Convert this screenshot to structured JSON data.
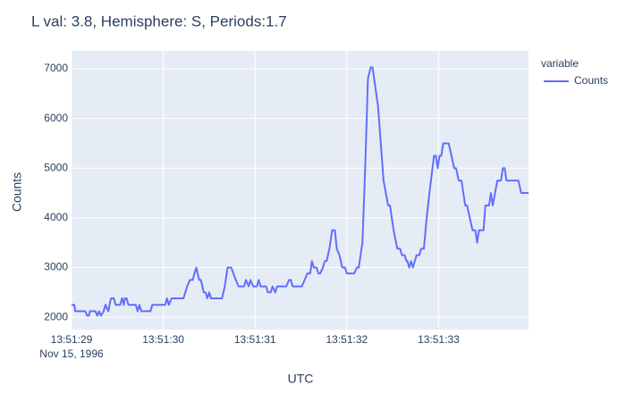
{
  "chart_data": {
    "type": "line",
    "title": "L val: 3.8, Hemisphere: S, Periods:1.7",
    "x_label": "UTC",
    "y_label": "Counts",
    "legend_title": "variable",
    "legend_position": "right",
    "x_date_label": "Nov 15, 1996",
    "x": [
      0,
      0.03,
      0.04,
      0.15,
      0.17,
      0.19,
      0.2,
      0.26,
      0.28,
      0.3,
      0.32,
      0.35,
      0.37,
      0.4,
      0.43,
      0.46,
      0.48,
      0.53,
      0.55,
      0.57,
      0.58,
      0.6,
      0.62,
      0.7,
      0.72,
      0.74,
      0.76,
      0.86,
      0.88,
      1.02,
      1.04,
      1.06,
      1.09,
      1.22,
      1.26,
      1.29,
      1.32,
      1.34,
      1.36,
      1.39,
      1.41,
      1.44,
      1.46,
      1.48,
      1.5,
      1.52,
      1.64,
      1.67,
      1.7,
      1.74,
      1.79,
      1.82,
      1.88,
      1.9,
      1.93,
      1.95,
      1.98,
      2.02,
      2.04,
      2.06,
      2.12,
      2.14,
      2.17,
      2.19,
      2.22,
      2.24,
      2.34,
      2.37,
      2.39,
      2.41,
      2.51,
      2.54,
      2.57,
      2.6,
      2.62,
      2.64,
      2.67,
      2.69,
      2.71,
      2.74,
      2.76,
      2.78,
      2.81,
      2.84,
      2.87,
      2.89,
      2.92,
      2.95,
      2.98,
      3.0,
      3.08,
      3.11,
      3.13,
      3.17,
      3.2,
      3.23,
      3.26,
      3.28,
      3.34,
      3.37,
      3.4,
      3.45,
      3.47,
      3.51,
      3.55,
      3.58,
      3.6,
      3.63,
      3.65,
      3.66,
      3.68,
      3.7,
      3.72,
      3.76,
      3.79,
      3.81,
      3.84,
      3.87,
      3.9,
      3.95,
      3.97,
      3.99,
      4.01,
      4.03,
      4.05,
      4.11,
      4.14,
      4.17,
      4.19,
      4.22,
      4.25,
      4.29,
      4.31,
      4.34,
      4.37,
      4.4,
      4.42,
      4.44,
      4.49,
      4.51,
      4.55,
      4.57,
      4.59,
      4.64,
      4.68,
      4.7,
      4.72,
      4.74,
      4.87,
      4.9,
      4.98
    ],
    "series": [
      {
        "name": "Counts",
        "color": "#636efa",
        "values": [
          2250,
          2250,
          2120,
          2120,
          2030,
          2030,
          2120,
          2120,
          2030,
          2120,
          2030,
          2120,
          2250,
          2120,
          2380,
          2380,
          2250,
          2250,
          2380,
          2250,
          2380,
          2380,
          2250,
          2250,
          2120,
          2250,
          2120,
          2120,
          2250,
          2250,
          2380,
          2250,
          2380,
          2380,
          2620,
          2750,
          2750,
          2880,
          3000,
          2750,
          2750,
          2500,
          2500,
          2380,
          2500,
          2380,
          2380,
          2620,
          3000,
          3000,
          2750,
          2620,
          2620,
          2750,
          2620,
          2750,
          2620,
          2620,
          2750,
          2620,
          2620,
          2500,
          2500,
          2620,
          2500,
          2620,
          2620,
          2750,
          2750,
          2620,
          2620,
          2750,
          2880,
          2880,
          3130,
          3000,
          3000,
          2880,
          2880,
          3000,
          3130,
          3130,
          3380,
          3750,
          3750,
          3380,
          3250,
          3000,
          3000,
          2880,
          2880,
          3000,
          3000,
          3500,
          5000,
          6800,
          7030,
          7030,
          6250,
          5500,
          4750,
          4250,
          4250,
          3750,
          3380,
          3380,
          3250,
          3250,
          3130,
          3130,
          3000,
          3130,
          3000,
          3250,
          3250,
          3380,
          3380,
          4000,
          4500,
          5250,
          5250,
          5000,
          5250,
          5250,
          5500,
          5500,
          5250,
          5000,
          5000,
          4750,
          4750,
          4250,
          4250,
          4000,
          3750,
          3750,
          3500,
          3750,
          3750,
          4250,
          4250,
          4500,
          4250,
          4750,
          4750,
          5000,
          5000,
          4750,
          4750,
          4500,
          4500
        ]
      }
    ],
    "xlim": [
      0,
      4.98
    ],
    "xticks": [
      {
        "value": 0,
        "label": "13:51:29"
      },
      {
        "value": 1,
        "label": "13:51:30"
      },
      {
        "value": 2,
        "label": "13:51:31"
      },
      {
        "value": 3,
        "label": "13:51:32"
      },
      {
        "value": 4,
        "label": "13:51:33"
      }
    ],
    "ylim": [
      1750,
      7360
    ],
    "yticks": [
      2000,
      3000,
      4000,
      5000,
      6000,
      7000
    ],
    "grid": true,
    "plot_background": "#e5ecf6"
  }
}
